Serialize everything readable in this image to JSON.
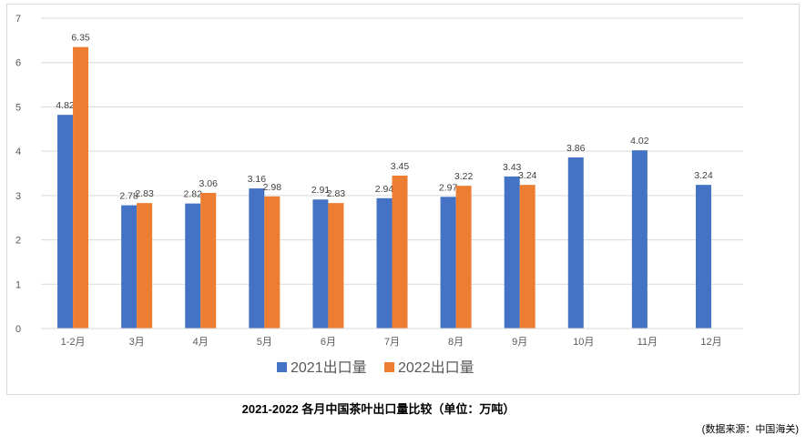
{
  "chart_data": {
    "type": "bar",
    "categories": [
      "1-2月",
      "3月",
      "4月",
      "5月",
      "6月",
      "7月",
      "8月",
      "9月",
      "10月",
      "11月",
      "12月"
    ],
    "series": [
      {
        "name": "2021出口量",
        "values": [
          4.82,
          2.78,
          2.82,
          3.16,
          2.91,
          2.94,
          2.97,
          3.43,
          3.86,
          4.02,
          3.24
        ]
      },
      {
        "name": "2022出口量",
        "values": [
          6.35,
          2.83,
          3.06,
          2.98,
          2.83,
          3.45,
          3.22,
          3.24,
          null,
          null,
          null
        ]
      }
    ],
    "ylim": [
      0,
      7
    ],
    "yticks": [
      "0",
      "1",
      "2",
      "3",
      "4",
      "5",
      "6",
      "7"
    ],
    "grid": true,
    "legend": "bottom",
    "colors": {
      "2021出口量": "#4472c4",
      "2022出口量": "#ed7d31"
    }
  },
  "caption": "2021-2022 各月中国茶叶出口量比较（单位：万吨）",
  "source": "(数据来源：中国海关)"
}
